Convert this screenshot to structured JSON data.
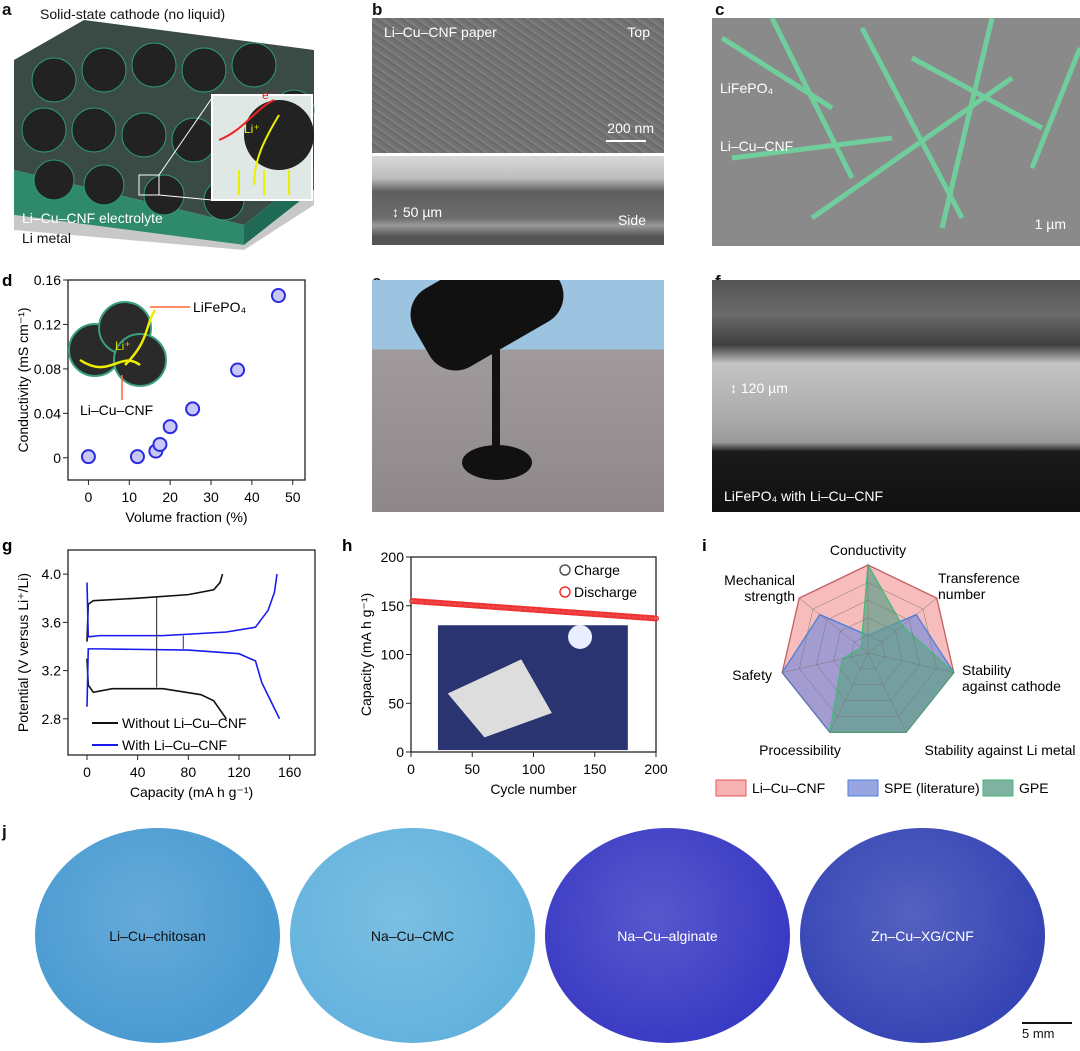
{
  "panels": {
    "a": {
      "label": "a",
      "title": "Solid-state cathode (no liquid)",
      "electrolyte": "Li–Cu–CNF electrolyte",
      "metal": "Li metal",
      "inset_e": "e⁻",
      "inset_li": "Li⁺"
    },
    "b": {
      "label": "b",
      "top_title": "Li–Cu–CNF paper",
      "top_tag": "Top",
      "scale": "200 nm",
      "side_tag": "Side",
      "thickness": "50 µm"
    },
    "c": {
      "label": "c",
      "lfp": "LiFePO₄",
      "cnf": "Li–Cu–CNF",
      "scale": "1 µm"
    },
    "e": {
      "label": "e"
    },
    "f": {
      "label": "f",
      "thickness": "120 µm",
      "caption": "LiFePO₄ with Li–Cu–CNF"
    },
    "j": {
      "label": "j",
      "discs": [
        {
          "label": "Li–Cu–chitosan",
          "color": "#3f95cf"
        },
        {
          "label": "Na–Cu–CMC",
          "color": "#5aaedb"
        },
        {
          "label": "Na–Cu–alginate",
          "color": "#2e2fc0"
        },
        {
          "label": "Zn–Cu–XG/CNF",
          "color": "#2a3ab0"
        }
      ],
      "scale": "5 mm"
    }
  },
  "chart_data": [
    {
      "id": "d",
      "label": "d",
      "type": "scatter",
      "xlabel": "Volume fraction (%)",
      "ylabel": "Conductivity (mS cm⁻¹)",
      "xlim": [
        -5,
        53
      ],
      "ylim": [
        -0.02,
        0.16
      ],
      "xticks": [
        0,
        10,
        20,
        30,
        40,
        50
      ],
      "yticks": [
        0,
        0.04,
        0.08,
        0.12,
        0.16
      ],
      "ytick_labels": [
        "0",
        "0.04",
        "0.08",
        "0.12",
        "0.16"
      ],
      "points": [
        [
          0,
          0.001
        ],
        [
          12,
          0.001
        ],
        [
          16.5,
          0.006
        ],
        [
          17.5,
          0.012
        ],
        [
          20,
          0.028
        ],
        [
          25.5,
          0.044
        ],
        [
          36.5,
          0.079
        ],
        [
          46.5,
          0.146
        ]
      ],
      "annotations": {
        "lfp": "LiFePO₄",
        "cnf": "Li–Cu–CNF",
        "li": "Li⁺"
      },
      "marker_color": "#2a2ae0"
    },
    {
      "id": "g",
      "label": "g",
      "type": "line",
      "xlabel": "Capacity (mA h g⁻¹)",
      "ylabel": "Potential (V versus Li⁺/Li)",
      "xlim": [
        -15,
        180
      ],
      "ylim": [
        2.5,
        4.2
      ],
      "xticks": [
        0,
        40,
        80,
        120,
        160
      ],
      "yticks": [
        2.8,
        3.2,
        3.6,
        4.0
      ],
      "ytick_labels": [
        "2.8",
        "3.2",
        "3.6",
        "4.0"
      ],
      "series": [
        {
          "name": "Without Li–Cu–CNF",
          "color": "#111111",
          "segments": [
            [
              [
                0,
                3.44
              ],
              [
                1,
                3.75
              ],
              [
                5,
                3.78
              ],
              [
                40,
                3.8
              ],
              [
                80,
                3.83
              ],
              [
                100,
                3.87
              ],
              [
                105,
                3.93
              ],
              [
                107,
                4.0
              ]
            ],
            [
              [
                0,
                3.3
              ],
              [
                1,
                3.08
              ],
              [
                5,
                3.02
              ],
              [
                20,
                3.05
              ],
              [
                60,
                3.05
              ],
              [
                90,
                3.0
              ],
              [
                100,
                2.95
              ],
              [
                110,
                2.8
              ]
            ]
          ]
        },
        {
          "name": "With Li–Cu–CNF",
          "color": "#1a1aee",
          "segments": [
            [
              [
                0,
                3.93
              ],
              [
                1,
                3.48
              ],
              [
                10,
                3.49
              ],
              [
                60,
                3.49
              ],
              [
                110,
                3.52
              ],
              [
                133,
                3.56
              ],
              [
                143,
                3.7
              ],
              [
                148,
                3.85
              ],
              [
                150,
                4.0
              ]
            ],
            [
              [
                0,
                2.9
              ],
              [
                1,
                3.38
              ],
              [
                10,
                3.38
              ],
              [
                80,
                3.37
              ],
              [
                120,
                3.34
              ],
              [
                133,
                3.28
              ],
              [
                138,
                3.1
              ],
              [
                145,
                2.95
              ],
              [
                152,
                2.8
              ]
            ]
          ]
        }
      ],
      "legend": "bottom-left"
    },
    {
      "id": "h",
      "label": "h",
      "type": "scatter",
      "xlabel": "Cycle number",
      "ylabel": "Capacity (mA h g⁻¹)",
      "xlim": [
        0,
        200
      ],
      "ylim": [
        0,
        200
      ],
      "xticks": [
        0,
        50,
        100,
        150,
        200
      ],
      "yticks": [
        0,
        50,
        100,
        150,
        200
      ],
      "series": [
        {
          "name": "Charge",
          "color": "#555555",
          "start": 160,
          "end": 138
        },
        {
          "name": "Discharge",
          "color": "#ee3333",
          "start": 155,
          "end": 137
        }
      ],
      "legend": "top-right"
    },
    {
      "id": "i",
      "label": "i",
      "type": "radar",
      "max": 5,
      "axes": [
        "Conductivity",
        "Transference number",
        "Stability against cathode",
        "Stability against Li metal",
        "Processibility",
        "Safety",
        "Mechanical strength"
      ],
      "series": [
        {
          "name": "Li–Cu–CNF",
          "color": "#ee5555",
          "fill": "#f4a0a0",
          "values": [
            5,
            5,
            5,
            5,
            5,
            5,
            5
          ]
        },
        {
          "name": "SPE (literature)",
          "color": "#4a7fe0",
          "fill": "#7f8fd8",
          "values": [
            1,
            3.5,
            5,
            5,
            5,
            5,
            3.5
          ]
        },
        {
          "name": "GPE",
          "color": "#44bb77",
          "fill": "#5f9f8a",
          "values": [
            5,
            2.5,
            5,
            5,
            5,
            1.5,
            0.5
          ]
        }
      ],
      "legend": "bottom"
    }
  ]
}
